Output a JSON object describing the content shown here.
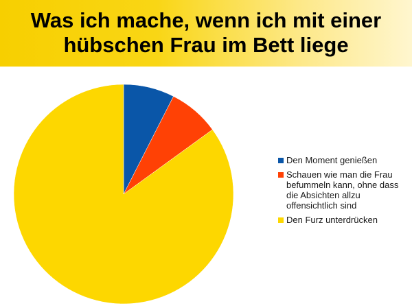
{
  "chart_data": {
    "type": "pie",
    "title_lines": [
      "Was ich mache, wenn ich mit einer",
      "hübschen Frau im Bett liege"
    ],
    "slices": [
      {
        "label": "Den Moment genießen",
        "value": 7.5,
        "color": "#0a56a8"
      },
      {
        "label": "Schauen wie man die Frau befummeln kann, ohne dass die Absichten allzu offensichtlich sind",
        "value": 7.5,
        "color": "#ff4105"
      },
      {
        "label": "Den Furz unterdrücken",
        "value": 85,
        "color": "#fdd700"
      }
    ],
    "legend_position": "right"
  },
  "colors": {
    "header_gradient_start": "#f7cf00",
    "header_gradient_end": "#fff6cf"
  }
}
